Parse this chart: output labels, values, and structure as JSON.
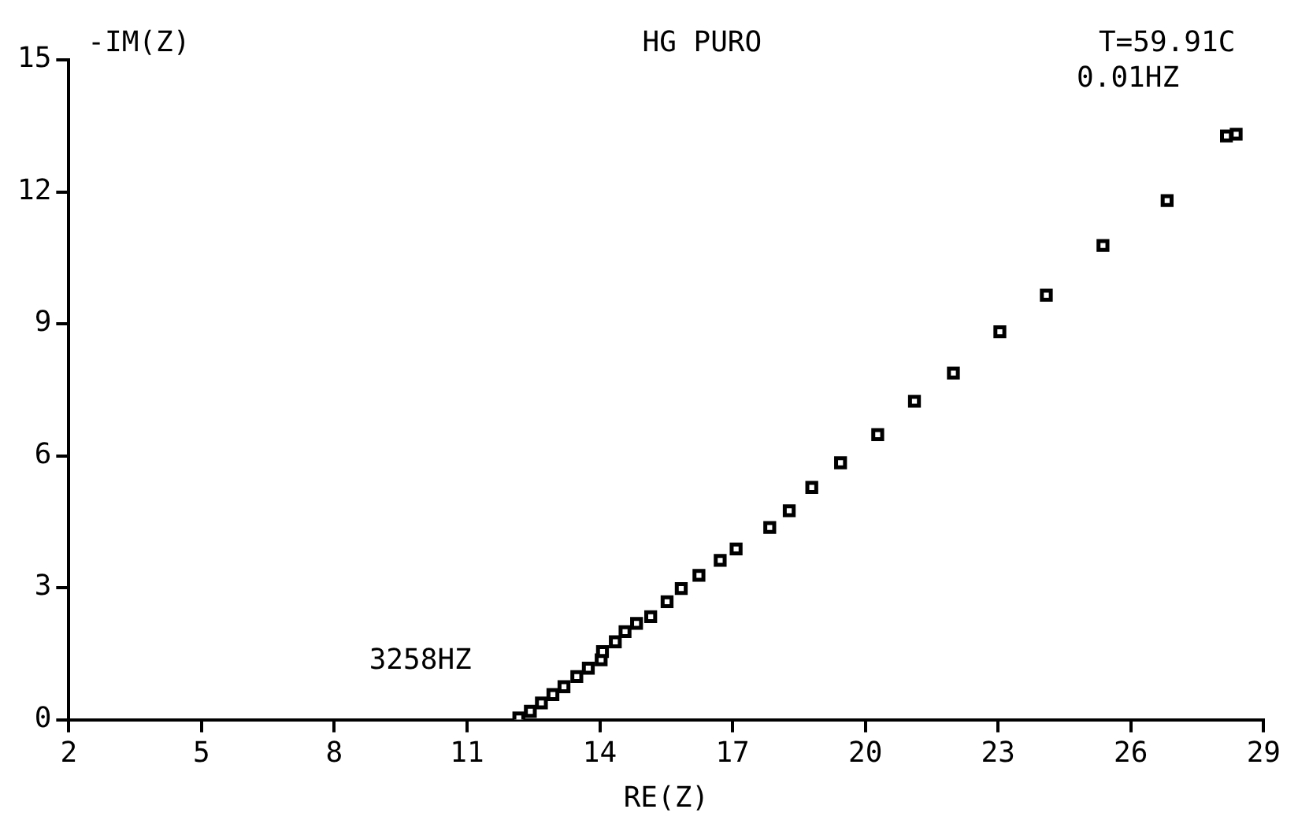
{
  "chart_data": {
    "type": "scatter",
    "title": "HG PURO",
    "subtitle": "T=59.91C",
    "xlabel": "RE(Z)",
    "ylabel": "-IM(Z)",
    "x": [
      12.17,
      12.43,
      12.68,
      12.94,
      13.19,
      13.48,
      13.74,
      14.03,
      14.06,
      14.35,
      14.57,
      14.83,
      15.15,
      15.52,
      15.84,
      16.24,
      16.72,
      17.08,
      17.84,
      18.28,
      18.79,
      19.44,
      20.28,
      21.11,
      21.99,
      23.04,
      24.09,
      25.37,
      26.82,
      28.16,
      28.38
    ],
    "values": [
      0.04,
      0.19,
      0.38,
      0.57,
      0.75,
      0.98,
      1.17,
      1.36,
      1.55,
      1.77,
      2.0,
      2.19,
      2.34,
      2.68,
      2.98,
      3.28,
      3.62,
      3.88,
      4.37,
      4.75,
      5.28,
      5.84,
      6.48,
      7.24,
      7.88,
      8.82,
      9.65,
      10.78,
      11.8,
      13.27,
      13.31
    ],
    "color": "#000000",
    "marker": "square",
    "xlim": [
      2,
      29
    ],
    "xticks": [
      2,
      5,
      8,
      11,
      14,
      17,
      20,
      23,
      26,
      29
    ],
    "ylim": [
      0,
      15
    ],
    "yticks": [
      0,
      3,
      6,
      9,
      12,
      15
    ],
    "annotations": [
      {
        "text": "3258HZ",
        "x": 12.17,
        "y": 0.04
      },
      {
        "text": "0.01HZ",
        "x": 28.16,
        "y": 13.27
      }
    ]
  }
}
